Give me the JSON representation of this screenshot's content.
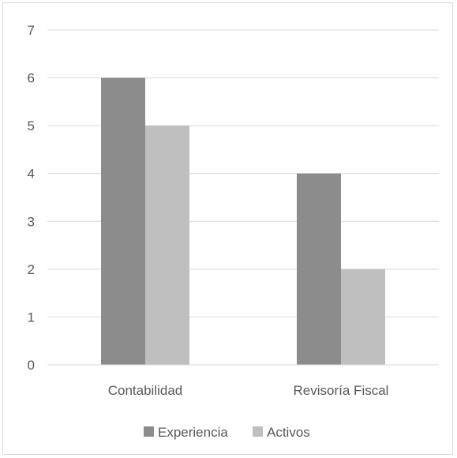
{
  "chart_data": {
    "type": "bar",
    "title": "",
    "xlabel": "",
    "ylabel": "",
    "categories": [
      "Contabilidad",
      "Revisoría Fiscal"
    ],
    "series": [
      {
        "name": "Experiencia",
        "values": [
          6,
          4
        ],
        "color": "#8c8c8c"
      },
      {
        "name": "Activos",
        "values": [
          5,
          2
        ],
        "color": "#bfbfbf"
      }
    ],
    "ylim": [
      0,
      7
    ],
    "yticks": [
      "0",
      "1",
      "2",
      "3",
      "4",
      "5",
      "6",
      "7"
    ],
    "grid": true,
    "legend_position": "bottom"
  }
}
